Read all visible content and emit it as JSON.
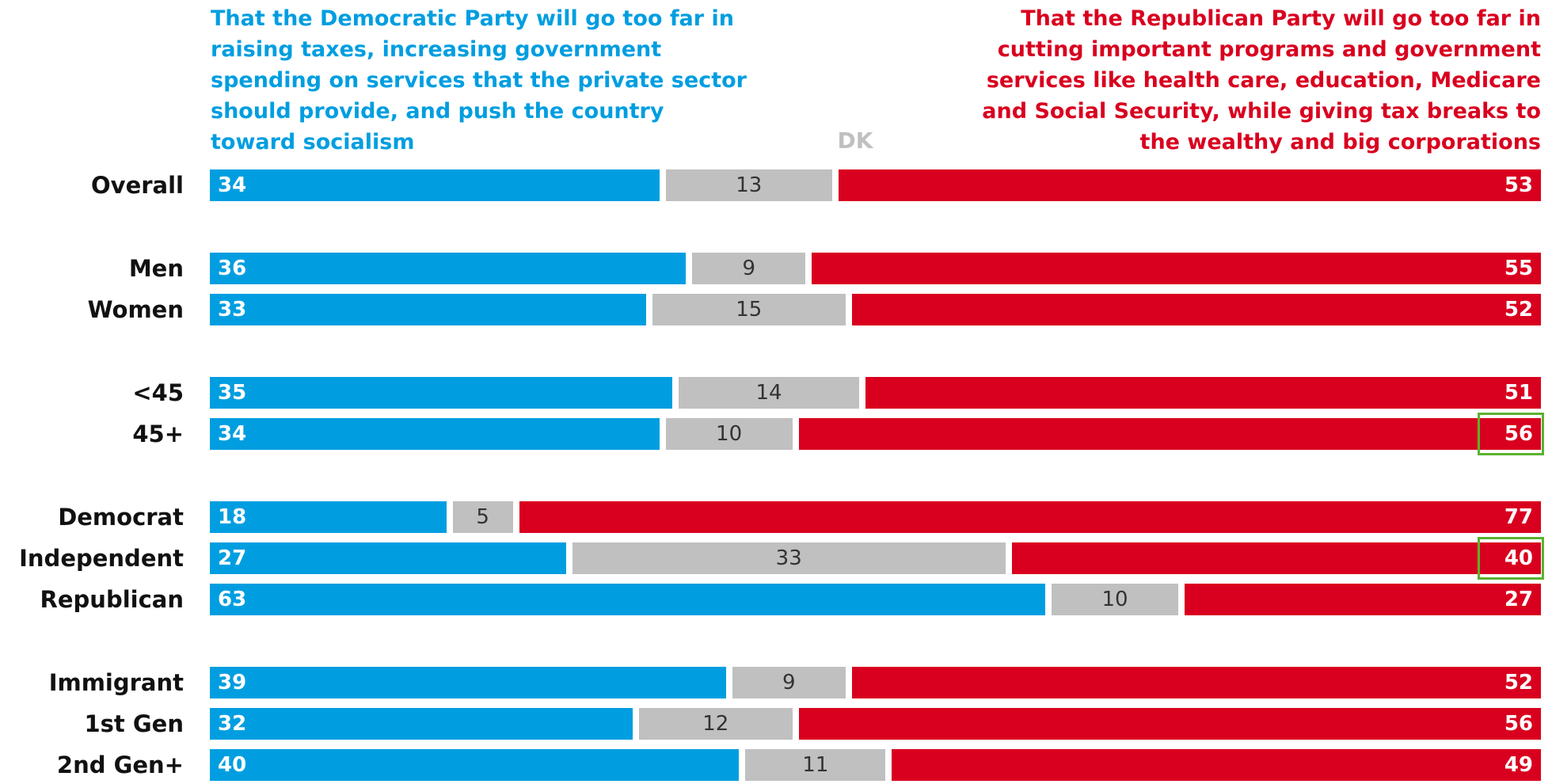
{
  "colors": {
    "democratic": "#009ee0",
    "dk": "#c0c0c0",
    "republican": "#d9001f",
    "highlight": "#5bb12f"
  },
  "chart_data": {
    "type": "bar",
    "orientation": "horizontal-stacked-100",
    "header_left": "That the Democratic Party will go too far in raising taxes, increasing government spending on services that the private sector should provide, and push the country toward socialism",
    "header_left_lines": [
      "That the Democratic Party will go too far in",
      "raising taxes, increasing government",
      "spending on services that the private sector",
      "should provide, and push the country",
      "toward socialism"
    ],
    "header_right_lines": [
      "That the Republican Party will go too far in",
      "cutting important programs and government",
      "services like health care, education, Medicare",
      "and Social Security, while giving tax breaks to",
      "the wealthy and big corporations"
    ],
    "header_dk": "DK",
    "categories": [
      "Overall",
      "Men",
      "Women",
      "<45",
      "45+",
      "Democrat",
      "Independent",
      "Republican",
      "Immigrant",
      "1st Gen",
      "2nd Gen+"
    ],
    "groups": [
      [
        "Overall"
      ],
      [
        "Men",
        "Women"
      ],
      [
        "<45",
        "45+"
      ],
      [
        "Democrat",
        "Independent",
        "Republican"
      ],
      [
        "Immigrant",
        "1st Gen",
        "2nd Gen+"
      ]
    ],
    "series": [
      {
        "name": "That the Democratic Party will go too far in raising taxes, increasing government spending on services that the private sector should provide, and push the country toward socialism",
        "values": [
          34,
          36,
          33,
          35,
          34,
          18,
          27,
          63,
          39,
          32,
          40
        ]
      },
      {
        "name": "DK",
        "values": [
          13,
          9,
          15,
          14,
          10,
          5,
          33,
          10,
          9,
          12,
          11
        ]
      },
      {
        "name": "That the Republican Party will go too far in cutting important programs and government services like health care, education, Medicare and Social Security, while giving tax breaks to the wealthy and big corporations",
        "values": [
          53,
          55,
          52,
          51,
          56,
          77,
          40,
          27,
          52,
          56,
          49
        ]
      }
    ],
    "highlighted": [
      {
        "category": "45+",
        "series": 2
      },
      {
        "category": "Independent",
        "series": 2
      }
    ],
    "xlim": [
      0,
      100
    ],
    "grid": false,
    "legend": "none"
  }
}
